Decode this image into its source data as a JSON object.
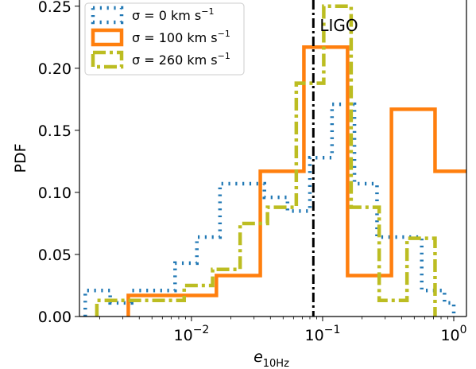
{
  "chart_data": {
    "type": "histogram",
    "x_scale": "log",
    "xlim": [
      0.0014,
      1.25
    ],
    "ylim": [
      0,
      0.255
    ],
    "xlabel_base": "e",
    "xlabel_sub": "10Hz",
    "ylabel": "PDF",
    "x_ticks": [
      {
        "value": 0.01,
        "base": "10",
        "exp": "−2"
      },
      {
        "value": 0.1,
        "base": "10",
        "exp": "−1"
      },
      {
        "value": 1,
        "base": "10",
        "exp": "0"
      }
    ],
    "y_ticks": [
      {
        "value": 0.0,
        "label": "0.00"
      },
      {
        "value": 0.05,
        "label": "0.05"
      },
      {
        "value": 0.1,
        "label": "0.10"
      },
      {
        "value": 0.15,
        "label": "0.15"
      },
      {
        "value": 0.2,
        "label": "0.20"
      },
      {
        "value": 0.25,
        "label": "0.25"
      }
    ],
    "legend_position": "top-left",
    "series": [
      {
        "name": "σ = 0 km s⁻¹",
        "legend_prefix": "σ = 0 km s",
        "legend_exp": "−1",
        "color": "#1f77b4",
        "style": "dotted",
        "bins": [
          {
            "x0": 0.00155,
            "x1": 0.0024,
            "y": 0.021
          },
          {
            "x0": 0.0024,
            "x1": 0.0035,
            "y": 0.011
          },
          {
            "x0": 0.0035,
            "x1": 0.005,
            "y": 0.021
          },
          {
            "x0": 0.005,
            "x1": 0.0075,
            "y": 0.021
          },
          {
            "x0": 0.0075,
            "x1": 0.011,
            "y": 0.043
          },
          {
            "x0": 0.011,
            "x1": 0.0165,
            "y": 0.064
          },
          {
            "x0": 0.0165,
            "x1": 0.0245,
            "y": 0.107
          },
          {
            "x0": 0.0245,
            "x1": 0.036,
            "y": 0.107
          },
          {
            "x0": 0.036,
            "x1": 0.054,
            "y": 0.096
          },
          {
            "x0": 0.054,
            "x1": 0.08,
            "y": 0.085
          },
          {
            "x0": 0.08,
            "x1": 0.118,
            "y": 0.128
          },
          {
            "x0": 0.118,
            "x1": 0.175,
            "y": 0.171
          },
          {
            "x0": 0.175,
            "x1": 0.26,
            "y": 0.107
          },
          {
            "x0": 0.26,
            "x1": 0.385,
            "y": 0.064
          },
          {
            "x0": 0.385,
            "x1": 0.57,
            "y": 0.064
          },
          {
            "x0": 0.57,
            "x1": 0.85,
            "y": 0.021
          },
          {
            "x0": 0.85,
            "x1": 1.0,
            "y": 0.011
          }
        ]
      },
      {
        "name": "σ = 100 km s⁻¹",
        "legend_prefix": "σ = 100 km s",
        "legend_exp": "−1",
        "color": "#ff7f0e",
        "style": "solid",
        "bins": [
          {
            "x0": 0.0033,
            "x1": 0.0072,
            "y": 0.017
          },
          {
            "x0": 0.0072,
            "x1": 0.0155,
            "y": 0.017
          },
          {
            "x0": 0.0155,
            "x1": 0.0335,
            "y": 0.033
          },
          {
            "x0": 0.0335,
            "x1": 0.072,
            "y": 0.117
          },
          {
            "x0": 0.072,
            "x1": 0.155,
            "y": 0.217
          },
          {
            "x0": 0.155,
            "x1": 0.335,
            "y": 0.033
          },
          {
            "x0": 0.335,
            "x1": 0.72,
            "y": 0.167
          },
          {
            "x0": 0.72,
            "x1": 1.55,
            "y": 0.117
          }
        ]
      },
      {
        "name": "σ = 260 km s⁻¹",
        "legend_prefix": "σ = 260 km s",
        "legend_exp": "−1",
        "color": "#bcbd22",
        "style": "dashdot",
        "bins": [
          {
            "x0": 0.0019,
            "x1": 0.0033,
            "y": 0.013
          },
          {
            "x0": 0.0033,
            "x1": 0.0055,
            "y": 0.013
          },
          {
            "x0": 0.0055,
            "x1": 0.0088,
            "y": 0.013
          },
          {
            "x0": 0.0088,
            "x1": 0.0145,
            "y": 0.025
          },
          {
            "x0": 0.0145,
            "x1": 0.0235,
            "y": 0.038
          },
          {
            "x0": 0.0235,
            "x1": 0.038,
            "y": 0.075
          },
          {
            "x0": 0.038,
            "x1": 0.063,
            "y": 0.088
          },
          {
            "x0": 0.063,
            "x1": 0.102,
            "y": 0.188
          },
          {
            "x0": 0.102,
            "x1": 0.165,
            "y": 0.25
          },
          {
            "x0": 0.165,
            "x1": 0.27,
            "y": 0.088
          },
          {
            "x0": 0.27,
            "x1": 0.44,
            "y": 0.013
          },
          {
            "x0": 0.44,
            "x1": 0.72,
            "y": 0.063
          }
        ]
      }
    ],
    "vline": {
      "x": 0.085,
      "label": "LIGO",
      "color": "#000000",
      "style": "dashdot"
    }
  }
}
